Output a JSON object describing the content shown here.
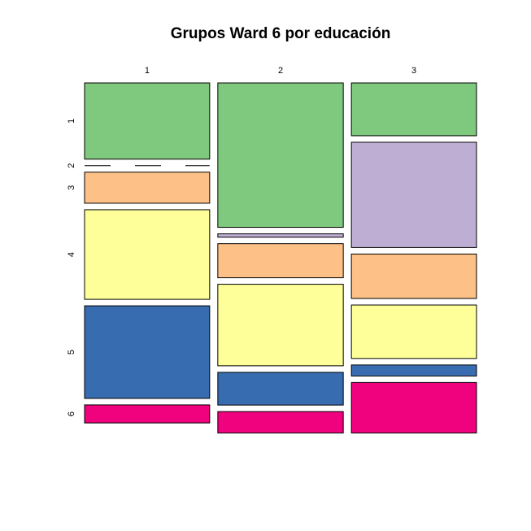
{
  "chart_data": {
    "type": "mosaic",
    "title": "Grupos Ward 6 por educación",
    "columns": [
      "1",
      "2",
      "3"
    ],
    "rows": [
      "1",
      "2",
      "3",
      "4",
      "5",
      "6"
    ],
    "column_proportions": [
      0.333,
      0.334,
      0.333
    ],
    "conditional_proportions": {
      "1": [
        0.228,
        0.0,
        0.093,
        0.268,
        0.277,
        0.054
      ],
      "2": [
        0.432,
        0.01,
        0.102,
        0.244,
        0.098,
        0.064
      ],
      "3": [
        0.158,
        0.315,
        0.133,
        0.16,
        0.033,
        0.151
      ]
    },
    "colors": [
      "#7fc97f",
      "#beaed4",
      "#fdc086",
      "#ffff99",
      "#386cb0",
      "#f0027f"
    ]
  }
}
